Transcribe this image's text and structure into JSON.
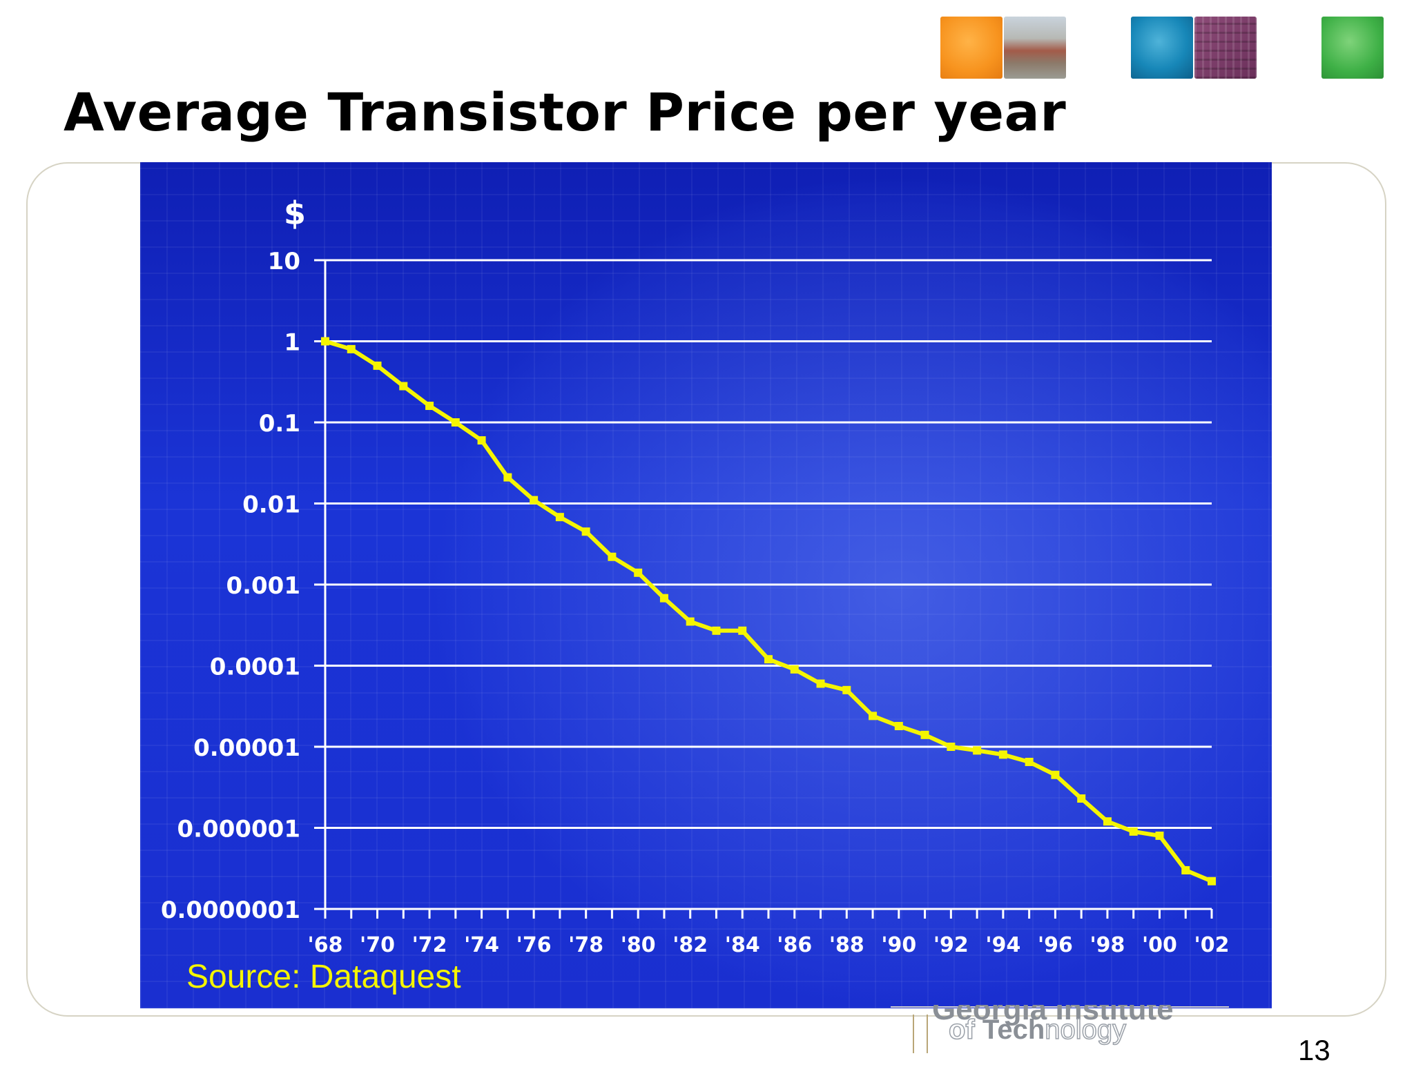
{
  "slide": {
    "title": "Average Transistor Price per year",
    "page_number": "13",
    "source_label": "Source: Dataquest",
    "logo": {
      "top": "Georgia Institute",
      "of": "of ",
      "tech": "Tech",
      "nology": "nology"
    }
  },
  "colors": {
    "line": "#f5f500",
    "grid": "#ffffff",
    "panel": "#1b34d6"
  },
  "chart_data": {
    "type": "line",
    "title": "",
    "ylabel": "$",
    "xlabel": "",
    "y_scale": "log",
    "ylim": [
      1e-07,
      10
    ],
    "yticks": [
      10,
      1,
      0.1,
      0.01,
      0.001,
      0.0001,
      1e-05,
      1e-06,
      1e-07
    ],
    "ytick_labels": [
      "10",
      "1",
      "0.1",
      "0.01",
      "0.001",
      "0.0001",
      "0.00001",
      "0.000001",
      "0.0000001"
    ],
    "xlim": [
      1968,
      2002
    ],
    "xtick_labels": [
      "'68",
      "'70",
      "'72",
      "'74",
      "'76",
      "'78",
      "'80",
      "'82",
      "'84",
      "'86",
      "'88",
      "'90",
      "'92",
      "'94",
      "'96",
      "'98",
      "'00",
      "'02"
    ],
    "xtick_years": [
      1968,
      1970,
      1972,
      1974,
      1976,
      1978,
      1980,
      1982,
      1984,
      1986,
      1988,
      1990,
      1992,
      1994,
      1996,
      1998,
      2000,
      2002
    ],
    "grid": true,
    "series": [
      {
        "name": "",
        "x": [
          1968,
          1969,
          1970,
          1971,
          1972,
          1973,
          1974,
          1975,
          1976,
          1977,
          1978,
          1979,
          1980,
          1981,
          1982,
          1983,
          1984,
          1985,
          1986,
          1987,
          1988,
          1989,
          1990,
          1991,
          1992,
          1993,
          1994,
          1995,
          1996,
          1997,
          1998,
          1999,
          2000,
          2001,
          2002
        ],
        "y": [
          1.0,
          0.8,
          0.5,
          0.28,
          0.16,
          0.1,
          0.06,
          0.021,
          0.011,
          0.0068,
          0.0045,
          0.0022,
          0.0014,
          0.00068,
          0.00035,
          0.00027,
          0.00027,
          0.00012,
          9e-05,
          6e-05,
          5e-05,
          2.4e-05,
          1.8e-05,
          1.4e-05,
          1e-05,
          9e-06,
          8e-06,
          6.5e-06,
          4.5e-06,
          2.3e-06,
          1.2e-06,
          9e-07,
          8e-07,
          3e-07,
          2.2e-07
        ]
      }
    ]
  }
}
